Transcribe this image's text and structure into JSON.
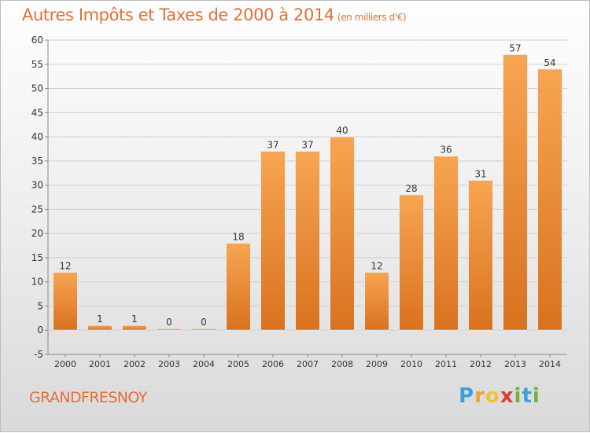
{
  "title": "Autres Impôts et Taxes de 2000 à 2014",
  "subtitle": "(en milliers d'€)",
  "commune": "GRANDFRESNOY",
  "logo": {
    "letters": [
      "P",
      "r",
      "o",
      "x",
      "i",
      "t",
      "i"
    ],
    "colors": [
      "#3aa0d8",
      "#e8a33a",
      "#f2c230",
      "#e23a3a",
      "#6db33f",
      "#3aa0d8",
      "#6db33f"
    ]
  },
  "colors": {
    "bar_light": "#f7a552",
    "bar_dark": "#d9721f",
    "accent": "#e0703a"
  },
  "chart_data": {
    "type": "bar",
    "title": "Autres Impôts et Taxes de 2000 à 2014",
    "subtitle": "(en milliers d'€)",
    "categories": [
      "2000",
      "2001",
      "2002",
      "2003",
      "2004",
      "2005",
      "2006",
      "2007",
      "2008",
      "2009",
      "2010",
      "2011",
      "2012",
      "2013",
      "2014"
    ],
    "values": [
      12,
      1,
      1,
      0,
      0,
      18,
      37,
      37,
      40,
      12,
      28,
      36,
      31,
      57,
      54
    ],
    "data_labels": [
      "12",
      "1",
      "1",
      "0",
      "0",
      "18",
      "37",
      "37",
      "40",
      "12",
      "28",
      "36",
      "31",
      "57",
      "54"
    ],
    "y_ticks": [
      -5,
      0,
      5,
      10,
      15,
      20,
      25,
      30,
      35,
      40,
      45,
      50,
      55,
      60
    ],
    "ylim": [
      -5,
      60
    ],
    "xlabel": "",
    "ylabel": "",
    "grid": true
  }
}
